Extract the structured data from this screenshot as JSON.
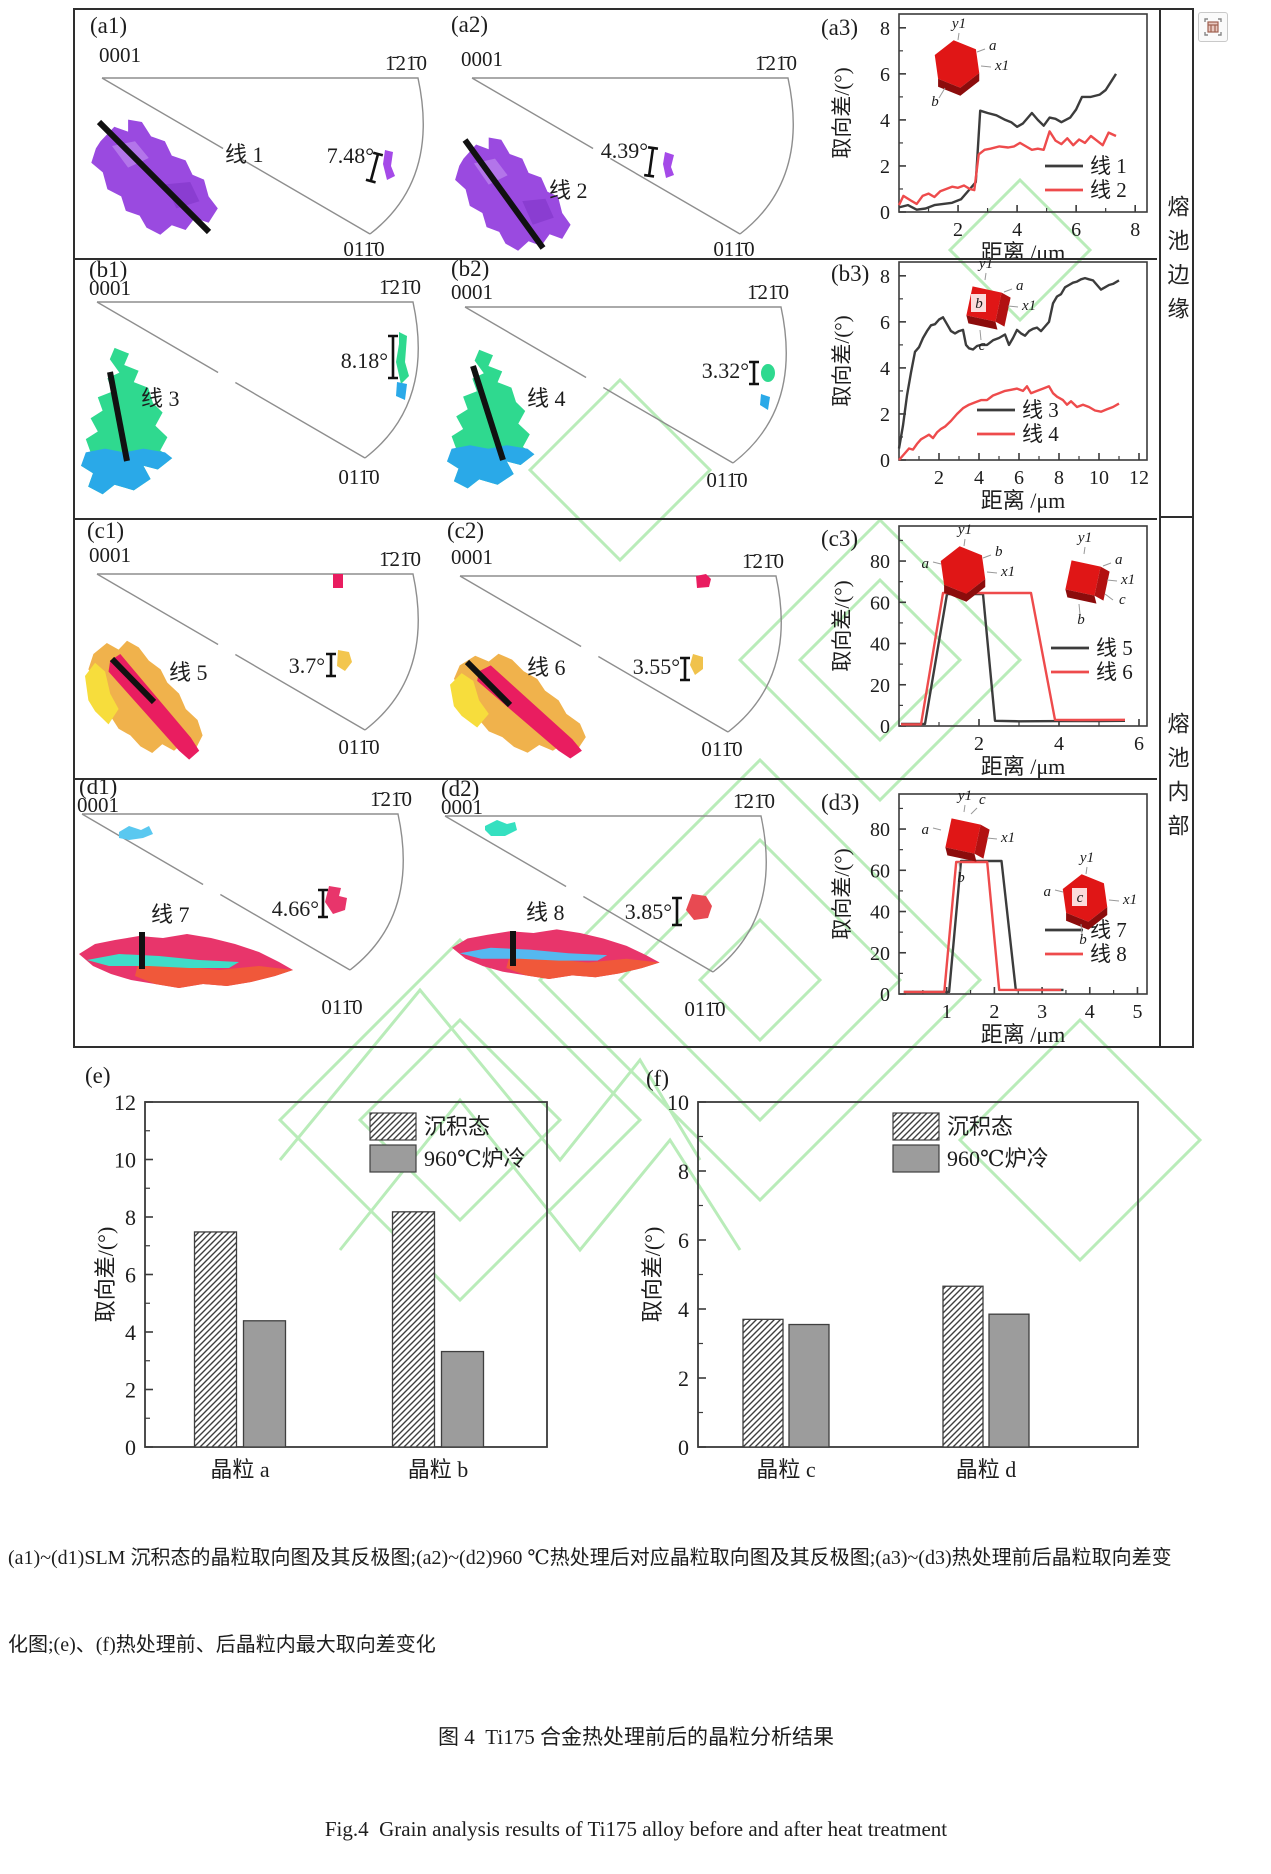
{
  "colors": {
    "line_black": "#3c3c3c",
    "line_red": "#ee4b4c",
    "bar_gray": "#9c9c9c",
    "crystal_red": "#e01616",
    "watermark_green": "#b9ecb9",
    "grain_purple": "#9a4ae0",
    "grain_green": "#2fd98f",
    "grain_blue": "#2aa9e8",
    "grain_yellow": "#f3c64e",
    "grain_crimson": "#e91d60",
    "grain_pink": "#e8356b",
    "grain_teal": "#3fdcc8"
  },
  "figure": {
    "side_labels": {
      "top": "熔池边缘",
      "bottom": "熔池内部"
    },
    "rows": [
      {
        "left": {
          "tag": "(a1)",
          "tl": "0001",
          "tr": "1̄21̄0",
          "bl": "011̄0",
          "line": "线 1",
          "angle": "7.48°"
        },
        "mid": {
          "tag": "(a2)",
          "tl": "0001",
          "tr": "1̄21̄0",
          "bl": "011̄0",
          "line": "线 2",
          "angle": "4.39°"
        },
        "chart_tag": "(a3)"
      },
      {
        "left": {
          "tag": "(b1)",
          "tl": "0001",
          "tr": "1̄21̄0",
          "bl": "011̄0",
          "line": "线 3",
          "angle": "8.18°"
        },
        "mid": {
          "tag": "(b2)",
          "tl": "0001",
          "tr": "1̄21̄0",
          "bl": "011̄0",
          "line": "线 4",
          "angle": "3.32°"
        },
        "chart_tag": "(b3)"
      },
      {
        "left": {
          "tag": "(c1)",
          "tl": "0001",
          "tr": "1̄21̄0",
          "bl": "011̄0",
          "line": "线 5",
          "angle": "3.7°"
        },
        "mid": {
          "tag": "(c2)",
          "tl": "0001",
          "tr": "1̄21̄0",
          "bl": "011̄0",
          "line": "线 6",
          "angle": "3.55°"
        },
        "chart_tag": "(c3)"
      },
      {
        "left": {
          "tag": "(d1)",
          "tl": "0001",
          "tr": "1̄21̄0",
          "bl": "011̄0",
          "line": "线 7",
          "angle": "4.66°"
        },
        "mid": {
          "tag": "(d2)",
          "tl": "0001",
          "tr": "1̄21̄0",
          "bl": "011̄0",
          "line": "线 8",
          "angle": "3.85°"
        },
        "chart_tag": "(d3)"
      }
    ]
  },
  "chart_data": [
    {
      "id": "a3",
      "type": "line",
      "xlabel": "距离 /μm",
      "ylabel": "取向差/(°)",
      "xlim": [
        0,
        8.4
      ],
      "ylim": [
        0,
        8.6
      ],
      "xticks": [
        2,
        4,
        6,
        8
      ],
      "yticks": [
        0,
        2,
        4,
        6,
        8
      ],
      "series": [
        {
          "name": "线 1",
          "color": "#3c3c3c",
          "points": [
            [
              0,
              0.2
            ],
            [
              0.3,
              0.3
            ],
            [
              0.6,
              0.1
            ],
            [
              0.9,
              0.15
            ],
            [
              1.2,
              0.3
            ],
            [
              1.5,
              0.35
            ],
            [
              1.8,
              0.4
            ],
            [
              2.1,
              0.55
            ],
            [
              2.4,
              1.0
            ],
            [
              2.6,
              1.3
            ],
            [
              2.75,
              4.4
            ],
            [
              3.0,
              4.3
            ],
            [
              3.3,
              4.2
            ],
            [
              3.6,
              4.0
            ],
            [
              3.8,
              3.9
            ],
            [
              4.0,
              3.7
            ],
            [
              4.2,
              3.85
            ],
            [
              4.5,
              4.3
            ],
            [
              4.7,
              4.0
            ],
            [
              4.9,
              3.75
            ],
            [
              5.1,
              4.1
            ],
            [
              5.3,
              4.05
            ],
            [
              5.5,
              3.9
            ],
            [
              5.8,
              4.1
            ],
            [
              6.0,
              4.45
            ],
            [
              6.2,
              5.0
            ],
            [
              6.5,
              5.0
            ],
            [
              6.8,
              5.1
            ],
            [
              7.0,
              5.3
            ],
            [
              7.2,
              5.7
            ],
            [
              7.35,
              6.0
            ]
          ]
        },
        {
          "name": "线 2",
          "color": "#ee4b4c",
          "points": [
            [
              0,
              0.3
            ],
            [
              0.15,
              0.7
            ],
            [
              0.4,
              0.5
            ],
            [
              0.6,
              0.35
            ],
            [
              0.8,
              0.7
            ],
            [
              1.0,
              0.8
            ],
            [
              1.2,
              0.65
            ],
            [
              1.4,
              0.9
            ],
            [
              1.6,
              1.0
            ],
            [
              1.8,
              1.1
            ],
            [
              2.0,
              1.05
            ],
            [
              2.2,
              1.15
            ],
            [
              2.4,
              1.0
            ],
            [
              2.55,
              0.95
            ],
            [
              2.7,
              2.5
            ],
            [
              2.9,
              2.7
            ],
            [
              3.1,
              2.75
            ],
            [
              3.4,
              2.85
            ],
            [
              3.7,
              2.8
            ],
            [
              3.9,
              2.85
            ],
            [
              4.1,
              3.0
            ],
            [
              4.3,
              2.85
            ],
            [
              4.5,
              2.7
            ],
            [
              4.7,
              2.75
            ],
            [
              4.9,
              2.7
            ],
            [
              5.1,
              3.5
            ],
            [
              5.3,
              3.1
            ],
            [
              5.5,
              2.95
            ],
            [
              5.7,
              3.2
            ],
            [
              5.9,
              2.9
            ],
            [
              6.1,
              3.15
            ],
            [
              6.3,
              3.0
            ],
            [
              6.5,
              3.3
            ],
            [
              6.7,
              3.1
            ],
            [
              6.9,
              2.9
            ],
            [
              7.1,
              3.45
            ],
            [
              7.35,
              3.3
            ]
          ]
        }
      ]
    },
    {
      "id": "b3",
      "type": "line",
      "xlabel": "距离 /μm",
      "ylabel": "取向差/(°)",
      "xlim": [
        0,
        12.4
      ],
      "ylim": [
        0,
        8.6
      ],
      "xticks": [
        2,
        4,
        6,
        8,
        10,
        12
      ],
      "yticks": [
        0,
        2,
        4,
        6,
        8
      ],
      "series": [
        {
          "name": "线 3",
          "color": "#3c3c3c",
          "points": [
            [
              0,
              0.5
            ],
            [
              0.2,
              1.5
            ],
            [
              0.4,
              2.8
            ],
            [
              0.6,
              3.8
            ],
            [
              0.8,
              4.7
            ],
            [
              1.0,
              4.9
            ],
            [
              1.2,
              5.3
            ],
            [
              1.4,
              5.6
            ],
            [
              1.6,
              5.85
            ],
            [
              1.8,
              5.9
            ],
            [
              2.0,
              6.1
            ],
            [
              2.2,
              6.2
            ],
            [
              2.4,
              5.9
            ],
            [
              2.6,
              5.6
            ],
            [
              2.8,
              5.5
            ],
            [
              3.0,
              5.6
            ],
            [
              3.2,
              5.65
            ],
            [
              3.35,
              5.0
            ],
            [
              3.5,
              4.85
            ],
            [
              3.7,
              4.8
            ],
            [
              3.9,
              4.95
            ],
            [
              4.1,
              5.0
            ],
            [
              4.4,
              5.0
            ],
            [
              4.7,
              5.2
            ],
            [
              5.0,
              5.3
            ],
            [
              5.3,
              5.45
            ],
            [
              5.5,
              5.0
            ],
            [
              5.7,
              5.3
            ],
            [
              5.9,
              5.65
            ],
            [
              6.1,
              5.5
            ],
            [
              6.3,
              5.4
            ],
            [
              6.5,
              5.6
            ],
            [
              6.7,
              5.7
            ],
            [
              6.9,
              5.75
            ],
            [
              7.1,
              5.6
            ],
            [
              7.3,
              5.8
            ],
            [
              7.5,
              6.0
            ],
            [
              7.7,
              6.8
            ],
            [
              7.9,
              7.1
            ],
            [
              8.1,
              7.2
            ],
            [
              8.3,
              7.5
            ],
            [
              8.5,
              7.6
            ],
            [
              8.7,
              7.7
            ],
            [
              8.9,
              7.75
            ],
            [
              9.1,
              7.85
            ],
            [
              9.3,
              7.9
            ],
            [
              9.5,
              7.85
            ],
            [
              9.7,
              7.8
            ],
            [
              9.9,
              7.6
            ],
            [
              10.1,
              7.4
            ],
            [
              10.3,
              7.5
            ],
            [
              10.5,
              7.6
            ],
            [
              10.7,
              7.65
            ],
            [
              10.9,
              7.75
            ],
            [
              11.0,
              7.8
            ]
          ]
        },
        {
          "name": "线 4",
          "color": "#ee4b4c",
          "points": [
            [
              0,
              0
            ],
            [
              0.3,
              0.3
            ],
            [
              0.5,
              0.5
            ],
            [
              0.7,
              0.45
            ],
            [
              0.9,
              0.7
            ],
            [
              1.1,
              0.9
            ],
            [
              1.3,
              1.0
            ],
            [
              1.5,
              1.1
            ],
            [
              1.7,
              0.95
            ],
            [
              1.9,
              1.2
            ],
            [
              2.1,
              1.35
            ],
            [
              2.3,
              1.45
            ],
            [
              2.6,
              1.7
            ],
            [
              2.9,
              2.0
            ],
            [
              3.2,
              2.25
            ],
            [
              3.5,
              2.4
            ],
            [
              3.8,
              2.5
            ],
            [
              4.1,
              2.6
            ],
            [
              4.4,
              2.6
            ],
            [
              4.7,
              2.8
            ],
            [
              5.0,
              2.9
            ],
            [
              5.3,
              3.0
            ],
            [
              5.6,
              3.05
            ],
            [
              5.9,
              3.1
            ],
            [
              6.2,
              3.0
            ],
            [
              6.4,
              3.2
            ],
            [
              6.6,
              2.9
            ],
            [
              6.9,
              3.0
            ],
            [
              7.2,
              3.1
            ],
            [
              7.5,
              3.2
            ],
            [
              7.7,
              2.9
            ],
            [
              7.9,
              2.75
            ],
            [
              8.2,
              2.6
            ],
            [
              8.4,
              2.4
            ],
            [
              8.6,
              2.55
            ],
            [
              8.9,
              2.3
            ],
            [
              9.2,
              2.4
            ],
            [
              9.5,
              2.3
            ],
            [
              9.8,
              2.15
            ],
            [
              10.1,
              2.1
            ],
            [
              10.4,
              2.2
            ],
            [
              10.7,
              2.3
            ],
            [
              11.0,
              2.45
            ]
          ]
        }
      ]
    },
    {
      "id": "c3",
      "type": "line",
      "xlabel": "距离 /μm",
      "ylabel": "取向差/(°)",
      "xlim": [
        0,
        6.2
      ],
      "ylim": [
        0,
        97
      ],
      "xticks": [
        2,
        4,
        6
      ],
      "yticks": [
        0,
        20,
        40,
        60,
        80
      ],
      "series": [
        {
          "name": "线 5",
          "color": "#3c3c3c",
          "points": [
            [
              0.05,
              1
            ],
            [
              0.65,
              1
            ],
            [
              1.2,
              64
            ],
            [
              2.1,
              64
            ],
            [
              2.4,
              2.5
            ],
            [
              3.0,
              2.3
            ],
            [
              4.0,
              2.4
            ],
            [
              5.0,
              2.4
            ],
            [
              5.65,
              2.5
            ]
          ]
        },
        {
          "name": "线 6",
          "color": "#ee4b4c",
          "points": [
            [
              0.05,
              0.8
            ],
            [
              0.55,
              0.8
            ],
            [
              1.1,
              64.5
            ],
            [
              3.3,
              64.5
            ],
            [
              3.9,
              3
            ],
            [
              4.5,
              2.9
            ],
            [
              5.65,
              3
            ]
          ]
        }
      ]
    },
    {
      "id": "d3",
      "type": "line",
      "xlabel": "距离 /μm",
      "ylabel": "取向差/(°)",
      "xlim": [
        0,
        5.2
      ],
      "ylim": [
        0,
        97
      ],
      "xticks": [
        1,
        2,
        3,
        4,
        5
      ],
      "yticks": [
        0,
        20,
        40,
        60,
        80
      ],
      "series": [
        {
          "name": "线 7",
          "color": "#3c3c3c",
          "points": [
            [
              0.1,
              1
            ],
            [
              1.05,
              1
            ],
            [
              1.3,
              64.5
            ],
            [
              2.15,
              64.5
            ],
            [
              2.45,
              2
            ],
            [
              3.0,
              2
            ],
            [
              3.45,
              2
            ]
          ]
        },
        {
          "name": "线 8",
          "color": "#ee4b4c",
          "points": [
            [
              0.1,
              1
            ],
            [
              0.95,
              1
            ],
            [
              1.2,
              64
            ],
            [
              1.85,
              64
            ],
            [
              2.1,
              2
            ],
            [
              2.8,
              2
            ],
            [
              3.4,
              2
            ]
          ]
        }
      ]
    },
    {
      "id": "e",
      "type": "bar",
      "tag": "(e)",
      "ylabel": "取向差/(°)",
      "ylim": [
        0,
        12
      ],
      "yticks": [
        0,
        2,
        4,
        6,
        8,
        10,
        12
      ],
      "categories": [
        "晶粒 a",
        "晶粒 b"
      ],
      "series": [
        {
          "name": "沉积态",
          "style": "hatch",
          "values": [
            7.48,
            8.18
          ]
        },
        {
          "name": "960℃炉冷",
          "style": "solid",
          "color": "#9c9c9c",
          "values": [
            4.39,
            3.32
          ]
        }
      ]
    },
    {
      "id": "f",
      "type": "bar",
      "tag": "(f)",
      "ylabel": "取向差/(°)",
      "ylim": [
        0,
        10
      ],
      "yticks": [
        0,
        2,
        4,
        6,
        8,
        10
      ],
      "categories": [
        "晶粒 c",
        "晶粒 d"
      ],
      "series": [
        {
          "name": "沉积态",
          "style": "hatch",
          "values": [
            3.7,
            4.66
          ]
        },
        {
          "name": "960℃炉冷",
          "style": "solid",
          "color": "#9c9c9c",
          "values": [
            3.55,
            3.85
          ]
        }
      ]
    }
  ],
  "caption": {
    "line1": "(a1)~(d1)SLM 沉积态的晶粒取向图及其反极图;(a2)~(d2)960 ℃热处理后对应晶粒取向图及其反极图;(a3)~(d3)热处理前后晶粒取向差变",
    "line2": "化图;(e)、(f)热处理前、后晶粒内最大取向差变化",
    "zh_title": "图 4  Ti175 合金热处理前后的晶粒分析结果",
    "en_title": "Fig.4  Grain analysis results of Ti175 alloy before and after heat treatment"
  }
}
